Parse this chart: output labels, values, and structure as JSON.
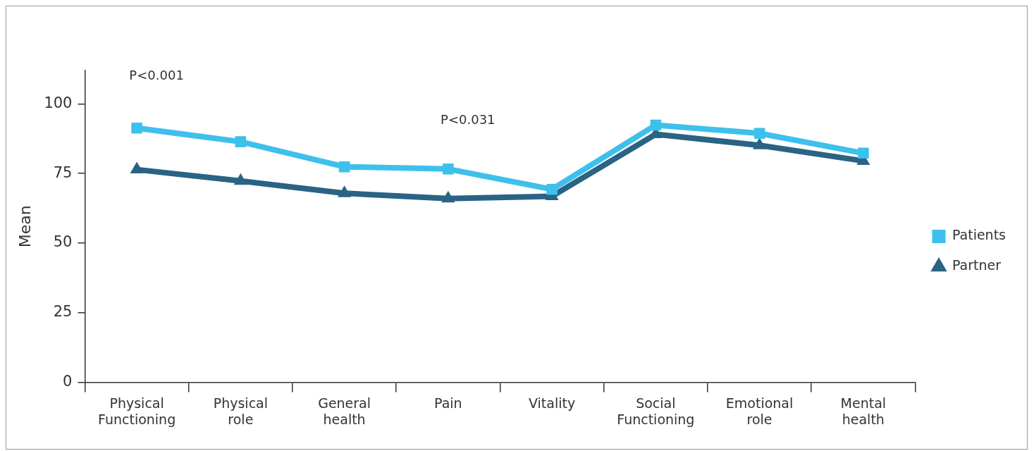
{
  "chart_data": {
    "type": "line",
    "ylabel": "Mean",
    "categories": [
      "Physical Functioning",
      "Physical role",
      "General health",
      "Pain",
      "Vitality",
      "Social Functioning",
      "Emotional role",
      "Mental health"
    ],
    "series": [
      {
        "name": "Patients",
        "color": "#3ec0ec",
        "marker": "square",
        "values": [
          91.3,
          86.4,
          77.4,
          76.6,
          69.3,
          92.4,
          89.4,
          82.3
        ]
      },
      {
        "name": "Partner",
        "color": "#2a6383",
        "marker": "triangle",
        "values": [
          76.4,
          72.3,
          67.9,
          66.0,
          66.8,
          89.1,
          85.1,
          79.5
        ]
      }
    ],
    "ylim": [
      0,
      112
    ],
    "yticks": [
      0,
      25,
      50,
      75,
      100
    ],
    "grid": false,
    "legend": "right",
    "line_style": "solid",
    "annotations": [
      "P<0.001",
      "P<0.031"
    ]
  }
}
